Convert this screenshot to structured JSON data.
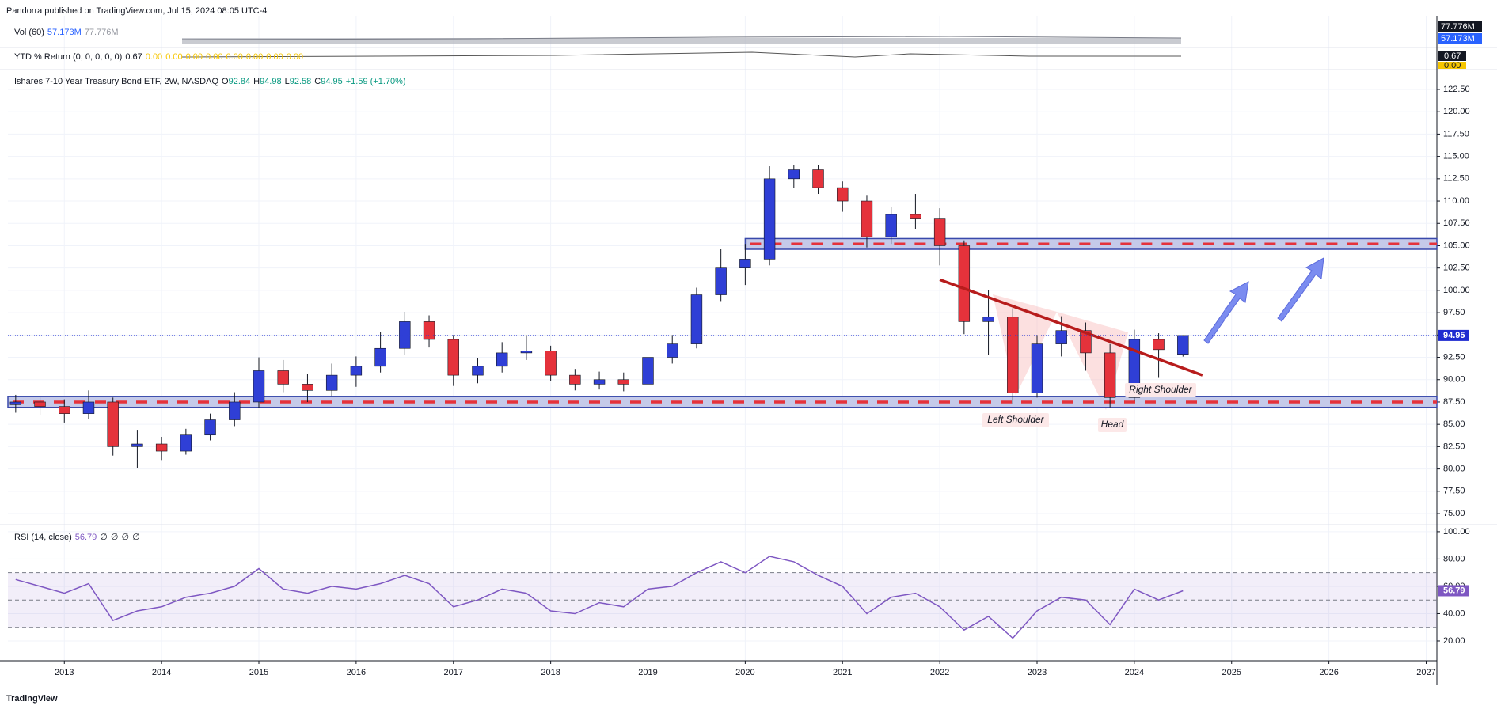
{
  "header": {
    "text": "Pandorra published on TradingView.com, Jul 15, 2024 08:05 UTC-4"
  },
  "volume_pane": {
    "name": "Vol (60)",
    "value": "57.173M",
    "average": "77.776M"
  },
  "ytd_pane": {
    "name": "YTD % Return (0, 0, 0, 0, 0)",
    "value": "0.67",
    "others": [
      "0.00",
      "0.00",
      "0.00",
      "0.00",
      "0.00",
      "0.00",
      "0.00",
      "0.00"
    ],
    "axis_labels": [
      "0.67",
      "0.00"
    ]
  },
  "footer": {
    "logo": "TradingView"
  },
  "chart_data": [
    {
      "type": "candlestick",
      "title": "Ishares 7-10 Year Treasury Bond ETF, 2W, NASDAQ",
      "ohlc_legend": [
        {
          "label": "O",
          "value": "92.84"
        },
        {
          "label": "H",
          "value": "94.98"
        },
        {
          "label": "L",
          "value": "92.58"
        },
        {
          "label": "C",
          "value": "94.95"
        }
      ],
      "change": "+1.59 (+1.70%)",
      "up_color": "#2f3fd6",
      "down_color": "#e5323b",
      "x": [
        2012.5,
        2012.75,
        2013,
        2013.25,
        2013.5,
        2013.75,
        2014,
        2014.25,
        2014.5,
        2014.75,
        2015,
        2015.25,
        2015.5,
        2015.75,
        2016,
        2016.25,
        2016.5,
        2016.75,
        2017,
        2017.25,
        2017.5,
        2017.75,
        2018,
        2018.25,
        2018.5,
        2018.75,
        2019,
        2019.25,
        2019.5,
        2019.75,
        2020,
        2020.25,
        2020.5,
        2020.75,
        2021,
        2021.25,
        2021.5,
        2021.75,
        2022,
        2022.25,
        2022.5,
        2022.75,
        2023,
        2023.25,
        2023.5,
        2023.75,
        2024,
        2024.25,
        2024.5
      ],
      "open": [
        87.2,
        87.5,
        87,
        86.2,
        87.5,
        82.5,
        82.8,
        82,
        83.8,
        85.5,
        87.5,
        91,
        89.5,
        88.8,
        90.5,
        91.5,
        93.5,
        96.5,
        94.5,
        90.5,
        91.5,
        93,
        93.2,
        90.5,
        89.5,
        90,
        89.5,
        92.5,
        94,
        99.5,
        102.5,
        103.5,
        112.5,
        113.5,
        111.5,
        110,
        106,
        108.5,
        108,
        105,
        96.5,
        97,
        88.5,
        94,
        95.5,
        93,
        88,
        94.5,
        92.84
      ],
      "high": [
        88.3,
        88,
        87.8,
        88.8,
        88,
        84.3,
        83.6,
        84.5,
        86.2,
        88.6,
        92.5,
        92.2,
        90.6,
        91.8,
        92.6,
        95.3,
        97.6,
        97.2,
        95,
        92.4,
        94.2,
        95,
        93.8,
        91.2,
        90.9,
        90.8,
        93.2,
        95,
        100.3,
        104.6,
        105.2,
        113.9,
        114,
        114,
        112.2,
        110.6,
        109.3,
        110.8,
        109.2,
        105.6,
        100,
        98,
        95,
        97.1,
        96.4,
        94,
        95.6,
        95.2,
        94.98
      ],
      "low": [
        86.3,
        86,
        85.2,
        85.6,
        81.5,
        80.1,
        81,
        81.6,
        83.2,
        84.8,
        86.8,
        88.6,
        87.5,
        88.1,
        89.2,
        90.8,
        92.8,
        93.6,
        89.3,
        89.6,
        90.8,
        92.2,
        89.8,
        88.8,
        88.9,
        88.7,
        89,
        91.8,
        93.5,
        98.8,
        100.6,
        102.8,
        111.5,
        110.8,
        108.8,
        104.8,
        105.2,
        106.9,
        102.8,
        95.1,
        92.8,
        87.3,
        88,
        92.6,
        91,
        86.9,
        87.6,
        90.2,
        92.58
      ],
      "close": [
        87.5,
        87,
        86.2,
        87.5,
        82.5,
        82.8,
        82,
        83.8,
        85.5,
        87.5,
        91,
        89.5,
        88.8,
        90.5,
        91.5,
        93.5,
        96.5,
        94.5,
        90.5,
        91.5,
        93,
        93.2,
        90.5,
        89.5,
        90,
        89.5,
        92.5,
        94,
        99.5,
        102.5,
        103.5,
        112.5,
        113.5,
        111.5,
        110,
        106,
        108.5,
        108,
        105,
        96.5,
        97,
        88.5,
        94,
        95.5,
        93,
        88,
        94.5,
        93.36,
        94.95
      ],
      "last_price": {
        "value": 94.95,
        "label": "94.95"
      },
      "zones": [
        {
          "from": 2020.0,
          "low": 104.6,
          "high": 105.8
        },
        {
          "from": 2012.42,
          "low": 86.9,
          "high": 88.1
        }
      ],
      "trendline": {
        "x": [
          2022.0,
          2024.7
        ],
        "y": [
          101.2,
          90.5
        ]
      },
      "annotations": [
        "Left Shoulder",
        "Head",
        "Right Shoulder"
      ],
      "xlim": [
        2012.42,
        2027.11
      ],
      "xticks": [
        2013,
        2014,
        2015,
        2016,
        2017,
        2018,
        2019,
        2020,
        2021,
        2022,
        2023,
        2024,
        2025,
        2026,
        2027
      ],
      "ylim": [
        73.94,
        124.27
      ],
      "yticks": [
        {
          "value": 75,
          "label": "75.00"
        },
        {
          "value": 77.5,
          "label": "77.50"
        },
        {
          "value": 80,
          "label": "80.00"
        },
        {
          "value": 82.5,
          "label": "82.50"
        },
        {
          "value": 85,
          "label": "85.00"
        },
        {
          "value": 87.5,
          "label": "87.50"
        },
        {
          "value": 90,
          "label": "90.00"
        },
        {
          "value": 92.5,
          "label": "92.50"
        },
        {
          "value": 95,
          "label": "95.00"
        },
        {
          "value": 97.5,
          "label": "97.50"
        },
        {
          "value": 100,
          "label": "100.00"
        },
        {
          "value": 102.5,
          "label": "102.50"
        },
        {
          "value": 105,
          "label": "105.00"
        },
        {
          "value": 107.5,
          "label": "107.50"
        },
        {
          "value": 110,
          "label": "110.00"
        },
        {
          "value": 112.5,
          "label": "112.50"
        },
        {
          "value": 115,
          "label": "115.00"
        },
        {
          "value": 117.5,
          "label": "117.50"
        },
        {
          "value": 120,
          "label": "120.00"
        },
        {
          "value": 122.5,
          "label": "122.50"
        }
      ],
      "grid": true
    },
    {
      "type": "line",
      "title": "RSI (14, close)",
      "value_label": "56.79",
      "extras": [
        "∅",
        "∅",
        "∅",
        "∅"
      ],
      "color": "#7e57c2",
      "x": [
        2012.5,
        2012.75,
        2013,
        2013.25,
        2013.5,
        2013.75,
        2014,
        2014.25,
        2014.5,
        2014.75,
        2015,
        2015.25,
        2015.5,
        2015.75,
        2016,
        2016.25,
        2016.5,
        2016.75,
        2017,
        2017.25,
        2017.5,
        2017.75,
        2018,
        2018.25,
        2018.5,
        2018.75,
        2019,
        2019.25,
        2019.5,
        2019.75,
        2020,
        2020.25,
        2020.5,
        2020.75,
        2021,
        2021.25,
        2021.5,
        2021.75,
        2022,
        2022.25,
        2022.5,
        2022.75,
        2023,
        2023.25,
        2023.5,
        2023.75,
        2024,
        2024.25,
        2024.5
      ],
      "values": [
        65,
        60,
        55,
        62,
        35,
        42,
        45,
        52,
        55,
        60,
        73,
        58,
        55,
        60,
        58,
        62,
        68,
        62,
        45,
        50,
        58,
        55,
        42,
        40,
        48,
        45,
        58,
        60,
        70,
        78,
        70,
        82,
        78,
        68,
        60,
        40,
        52,
        55,
        45,
        28,
        38,
        22,
        42,
        52,
        50,
        32,
        58,
        50,
        56.79
      ],
      "bands": [
        30,
        50,
        70
      ],
      "xlim": [
        2012.42,
        2027.11
      ],
      "ylim": [
        5.5,
        104
      ],
      "yticks": [
        {
          "value": 20,
          "label": "20.00"
        },
        {
          "value": 40,
          "label": "40.00"
        },
        {
          "value": 60,
          "label": "60.00"
        },
        {
          "value": 80,
          "label": "80.00"
        },
        {
          "value": 100,
          "label": "100.00"
        }
      ],
      "grid": true
    }
  ]
}
